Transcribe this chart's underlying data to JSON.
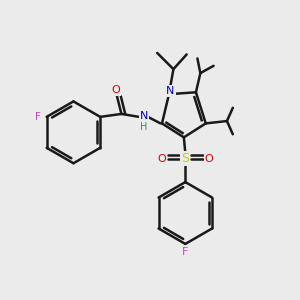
{
  "background_color": "#ebebeb",
  "bond_color": "#1a1a1a",
  "bond_width": 1.8,
  "atom_colors": {
    "F": "#cc44cc",
    "O": "#dd0000",
    "N": "#0000cc",
    "S": "#cccc00",
    "NH_N": "#0000cc",
    "NH_H": "#2a9944"
  },
  "fig_width": 3.0,
  "fig_height": 3.0,
  "dpi": 100
}
